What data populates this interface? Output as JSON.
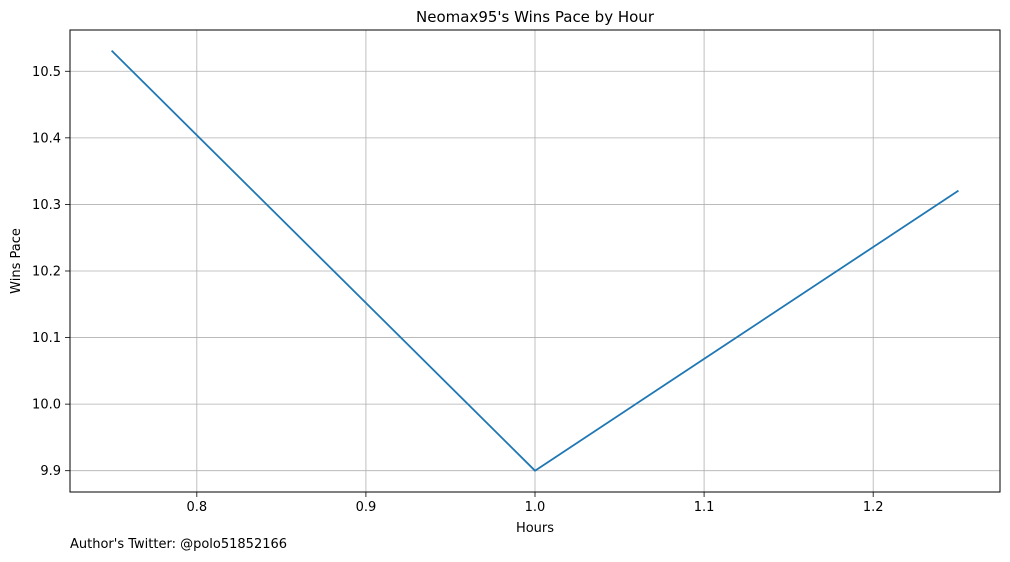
{
  "chart_data": {
    "type": "line",
    "title": "Neomax95's Wins Pace by Hour",
    "xlabel": "Hours",
    "ylabel": "Wins Pace",
    "xlim": [
      0.725,
      1.275
    ],
    "ylim": [
      9.868,
      10.562
    ],
    "x_ticks": [
      0.8,
      0.9,
      1.0,
      1.1,
      1.2
    ],
    "x_tick_labels": [
      "0.8",
      "0.9",
      "1.0",
      "1.1",
      "1.2"
    ],
    "y_ticks": [
      9.9,
      10.0,
      10.1,
      10.2,
      10.3,
      10.4,
      10.5
    ],
    "y_tick_labels": [
      "9.9",
      "10.0",
      "10.1",
      "10.2",
      "10.3",
      "10.4",
      "10.5"
    ],
    "grid": true,
    "series": [
      {
        "x": [
          0.75,
          1.0,
          1.25
        ],
        "values": [
          10.53,
          9.9,
          10.32
        ],
        "color": "#1f77b4"
      }
    ]
  },
  "footer": {
    "note": "Author's Twitter: @polo51852166"
  }
}
